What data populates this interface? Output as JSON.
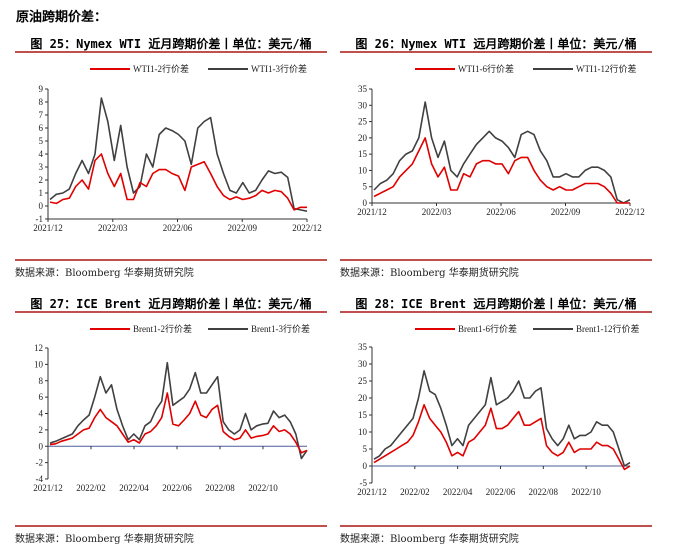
{
  "heading": "原油跨期价差：",
  "source": "数据来源：Bloomberg 华泰期货研究院",
  "chart_data": [
    {
      "type": "line",
      "title": "图 25：Nymex WTI 近月跨期价差丨单位：美元/桶",
      "ylim": [
        -1,
        9
      ],
      "ystep": 1,
      "xticks": [
        "2021/12",
        "2022/03",
        "2022/06",
        "2022/09",
        "2022/12"
      ],
      "xtick_span": 1,
      "zero_line": false,
      "series": [
        {
          "name": "WTI1-2行价差",
          "color": "#e00000",
          "values": [
            0.3,
            0.2,
            0.5,
            0.6,
            1.5,
            2.0,
            1.3,
            3.5,
            4.0,
            2.5,
            1.5,
            2.5,
            0.5,
            0.5,
            1.8,
            1.5,
            2.5,
            2.8,
            2.8,
            2.5,
            2.3,
            1.2,
            3.0,
            3.2,
            3.4,
            2.5,
            1.5,
            0.8,
            0.5,
            0.7,
            0.5,
            0.6,
            0.8,
            1.2,
            1.0,
            1.2,
            1.1,
            0.6,
            -0.3,
            -0.1,
            -0.1
          ]
        },
        {
          "name": "WTI1-3行价差",
          "color": "#404040",
          "values": [
            0.5,
            0.9,
            1.0,
            1.3,
            2.5,
            3.5,
            2.5,
            4.0,
            8.3,
            6.5,
            3.5,
            6.2,
            3.0,
            1.0,
            1.5,
            4.0,
            3.0,
            5.5,
            6.0,
            5.8,
            5.5,
            5.0,
            3.2,
            6.0,
            6.5,
            6.8,
            4.0,
            2.5,
            1.2,
            1.0,
            1.8,
            1.0,
            1.2,
            2.0,
            2.7,
            2.5,
            2.6,
            2.2,
            -0.2,
            -0.3,
            -0.4
          ]
        }
      ]
    },
    {
      "type": "line",
      "title": "图 26：Nymex WTI 远月跨期价差丨单位：美元/桶",
      "ylim": [
        0,
        35
      ],
      "ystep": 5,
      "xticks": [
        "2021/12",
        "2022/03",
        "2022/06",
        "2022/09",
        "2022/12"
      ],
      "xtick_span": 1,
      "zero_line": false,
      "series": [
        {
          "name": "WTI1-6行价差",
          "color": "#e00000",
          "values": [
            2,
            3,
            4,
            5,
            8,
            10,
            12,
            16,
            20,
            12,
            8,
            11,
            4,
            4,
            9,
            8,
            12,
            13,
            13,
            12,
            12,
            9,
            13,
            14,
            14,
            10,
            7,
            5,
            4,
            5,
            4,
            4,
            5,
            6,
            6,
            6,
            5,
            3,
            0,
            0,
            0
          ]
        },
        {
          "name": "WTI1-12行价差",
          "color": "#404040",
          "values": [
            4,
            6,
            7,
            9,
            13,
            15,
            16,
            20,
            31,
            20,
            14,
            19,
            10,
            8,
            12,
            15,
            18,
            20,
            22,
            20,
            19,
            17,
            14,
            21,
            22,
            21,
            16,
            13,
            8,
            8,
            9,
            8,
            8,
            10,
            11,
            11,
            10,
            8,
            1,
            0,
            1
          ]
        }
      ]
    },
    {
      "type": "line",
      "title": "图 27：ICE Brent 近月跨期价差丨单位：美元/桶",
      "ylim": [
        -4,
        12
      ],
      "ystep": 2,
      "xticks": [
        "2021/12",
        "2022/02",
        "2022/04",
        "2022/06",
        "2022/08",
        "2022/10"
      ],
      "xtick_span": 0.83,
      "zero_line": true,
      "series": [
        {
          "name": "Brent1-2行价差",
          "color": "#e00000",
          "values": [
            0.2,
            0.3,
            0.6,
            0.8,
            1.0,
            1.5,
            2.0,
            2.2,
            3.5,
            4.5,
            3.5,
            3.0,
            2.5,
            1.5,
            0.5,
            0.8,
            0.4,
            1.5,
            1.8,
            2.5,
            3.5,
            6.5,
            2.7,
            2.5,
            3.2,
            4.0,
            5.5,
            3.8,
            3.5,
            4.5,
            5.0,
            1.8,
            1.2,
            0.8,
            1.0,
            2.0,
            1.0,
            1.2,
            1.3,
            1.5,
            2.5,
            1.8,
            2.0,
            1.5,
            0.5,
            -0.8,
            -0.5
          ]
        },
        {
          "name": "Brent1-3行价差",
          "color": "#404040",
          "values": [
            0.4,
            0.6,
            0.9,
            1.2,
            1.5,
            2.5,
            3.2,
            3.8,
            6.0,
            8.5,
            6.5,
            7.5,
            4.5,
            2.5,
            0.8,
            1.5,
            0.8,
            2.5,
            3.0,
            4.5,
            5.5,
            10.2,
            5.0,
            5.5,
            6.0,
            7.0,
            9.0,
            6.5,
            6.5,
            7.5,
            8.5,
            3.0,
            2.0,
            1.5,
            2.0,
            4.0,
            2.0,
            2.5,
            2.7,
            2.8,
            4.3,
            3.5,
            3.8,
            3.0,
            1.5,
            -1.5,
            -0.5
          ]
        }
      ]
    },
    {
      "type": "line",
      "title": "图 28：ICE Brent 远月跨期价差丨单位：美元/桶",
      "ylim": [
        -5,
        35
      ],
      "ystep": 5,
      "xticks": [
        "2021/12",
        "2022/02",
        "2022/04",
        "2022/06",
        "2022/08",
        "2022/10"
      ],
      "xtick_span": 0.83,
      "zero_line": true,
      "series": [
        {
          "name": "Brent1-6行价差",
          "color": "#e00000",
          "values": [
            1,
            2,
            3,
            4,
            5,
            6,
            7,
            9,
            13,
            18,
            14,
            12,
            10,
            7,
            3,
            4,
            3,
            7,
            8,
            10,
            12,
            17,
            11,
            11,
            12,
            14,
            16,
            12,
            12,
            13,
            14,
            6,
            4,
            3,
            4,
            7,
            4,
            5,
            5,
            5,
            7,
            6,
            6,
            5,
            2,
            -1,
            0
          ]
        },
        {
          "name": "Brent1-12行价差",
          "color": "#404040",
          "values": [
            2,
            3,
            5,
            6,
            8,
            10,
            12,
            14,
            20,
            28,
            22,
            21,
            17,
            12,
            6,
            8,
            6,
            12,
            14,
            16,
            18,
            26,
            18,
            19,
            20,
            22,
            25,
            20,
            20,
            22,
            23,
            11,
            8,
            6,
            8,
            12,
            8,
            9,
            9,
            10,
            13,
            12,
            12,
            10,
            5,
            0,
            1
          ]
        }
      ]
    }
  ]
}
